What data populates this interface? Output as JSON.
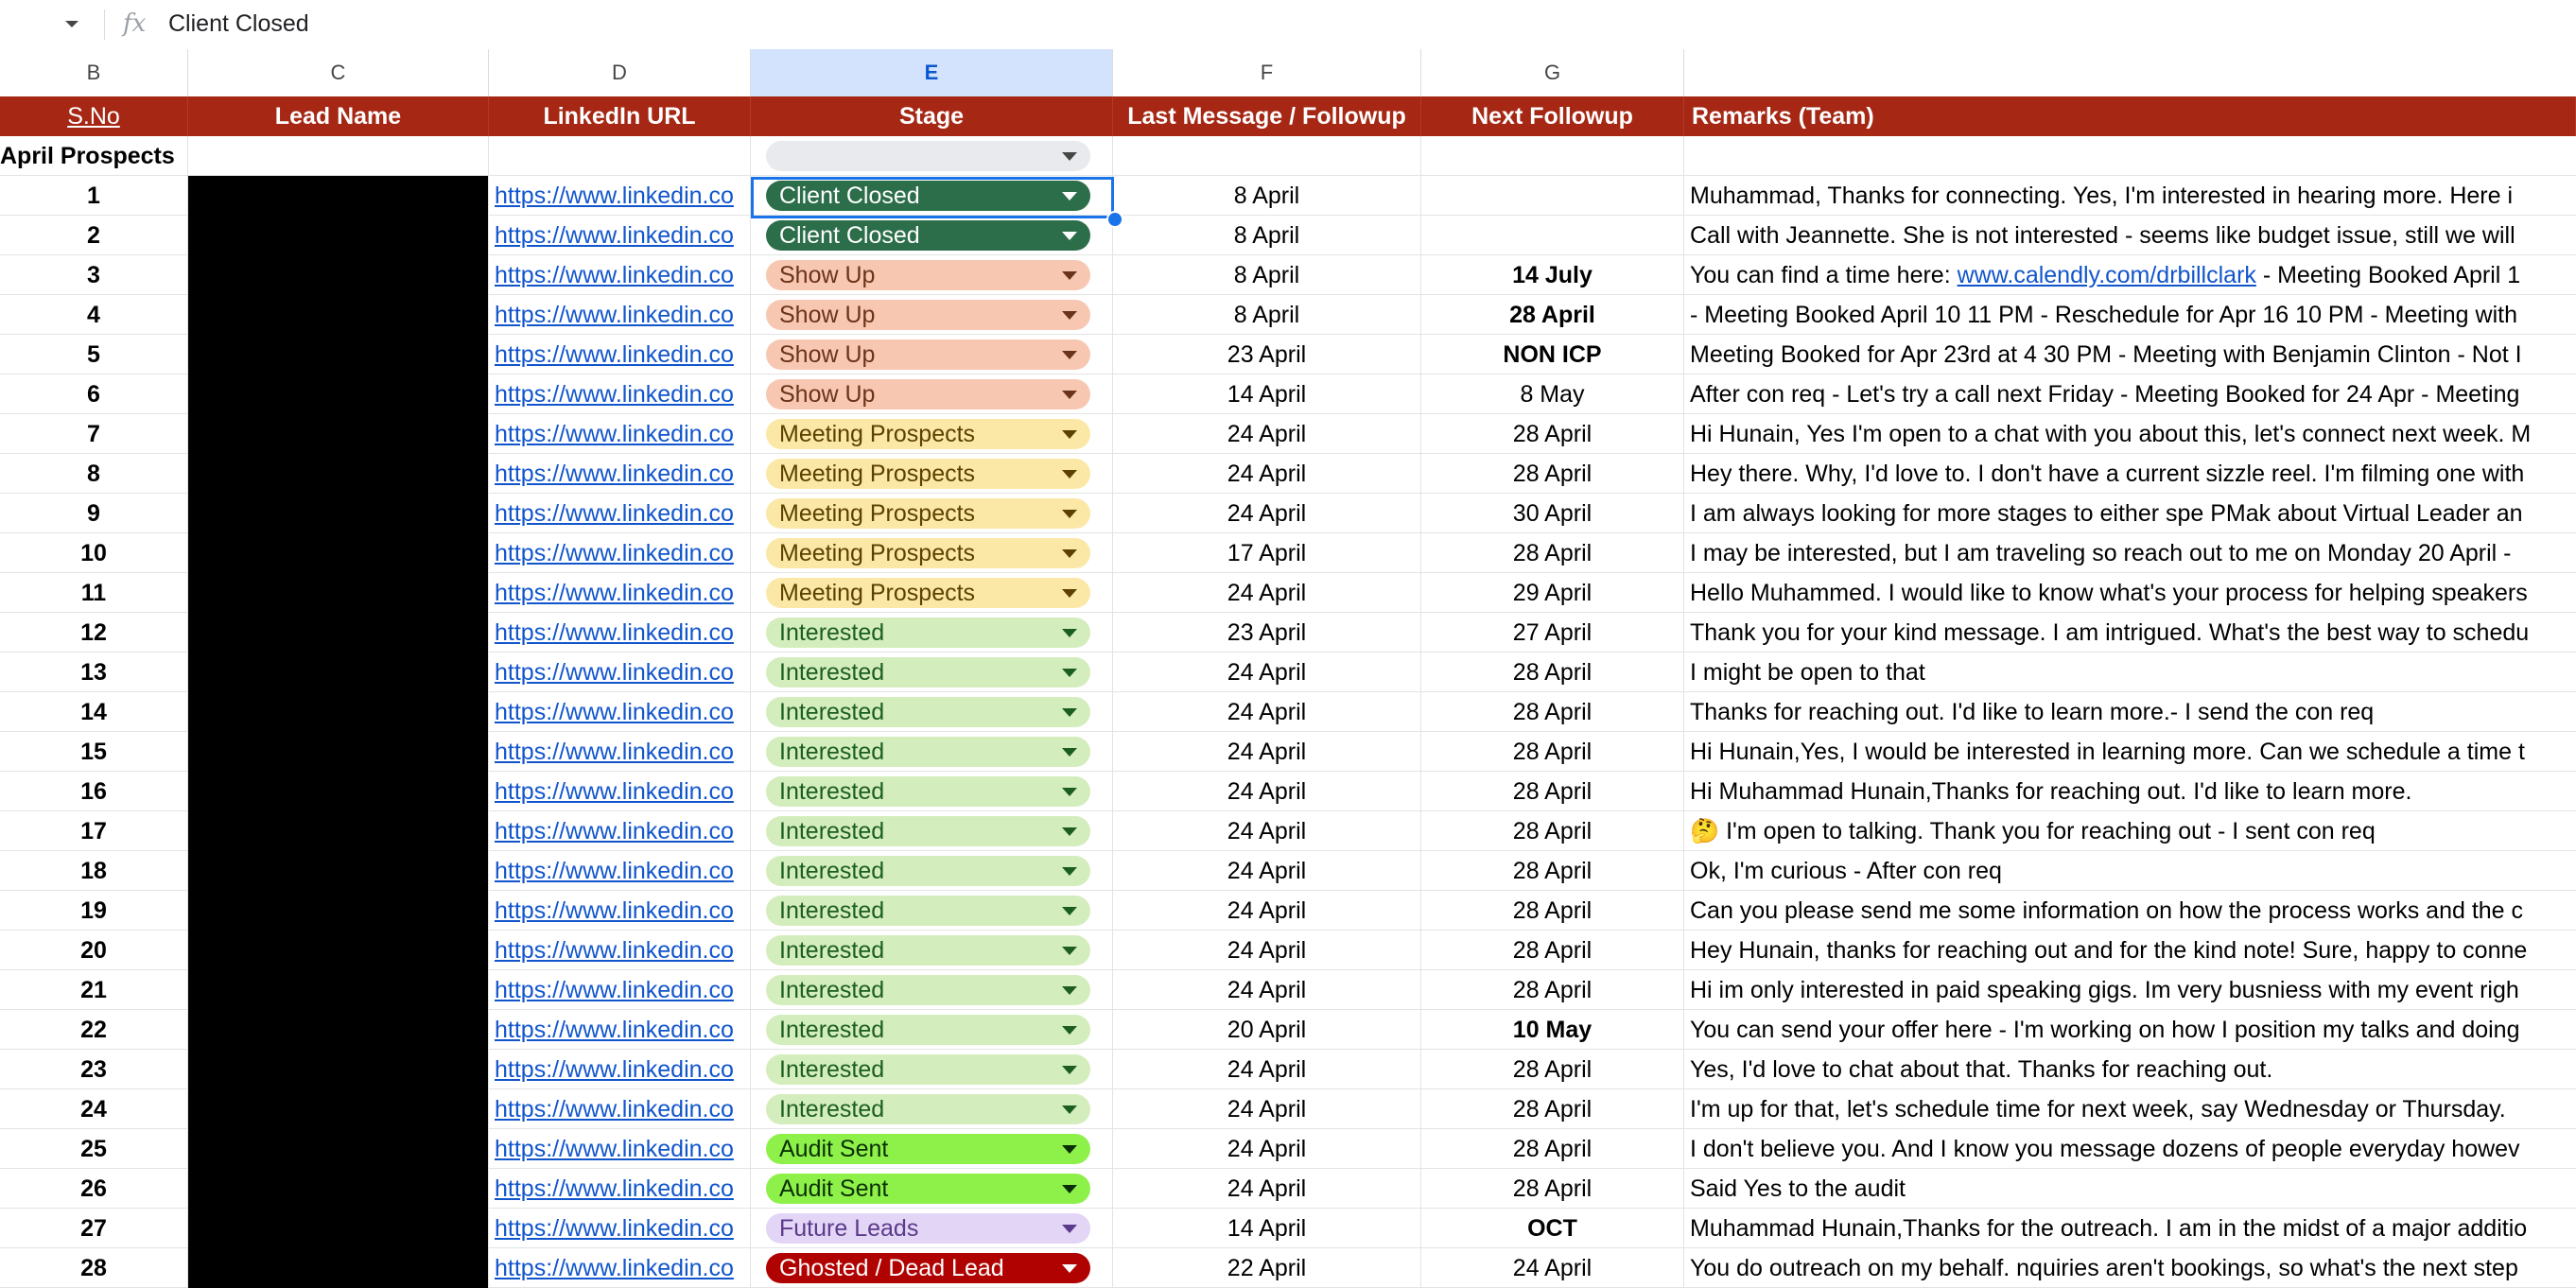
{
  "formula_bar": {
    "value": "Client Closed",
    "fx_icon": "fx-icon"
  },
  "columns": [
    "B",
    "C",
    "D",
    "E",
    "F",
    "G"
  ],
  "selected_column": "E",
  "header": {
    "sno": "S.No",
    "lead_name": "Lead Name",
    "linkedin": "LinkedIn URL",
    "stage": "Stage",
    "last_message": "Last Message / Followup",
    "next_followup": "Next Followup",
    "remarks": "Remarks (Team)"
  },
  "section_label": "April Prospects",
  "stage_styles": {
    "Client Closed": {
      "bg": "#2d6e4a",
      "fg": "#ffffff"
    },
    "Show Up": {
      "bg": "#f7c7b2",
      "fg": "#6b3319"
    },
    "Meeting Prospects": {
      "bg": "#fce8a6",
      "fg": "#5c4100"
    },
    "Interested": {
      "bg": "#d4edbc",
      "fg": "#1b5e20"
    },
    "Audit Sent": {
      "bg": "#8ef14a",
      "fg": "#0a2f05"
    },
    "Future Leads": {
      "bg": "#e3d5f5",
      "fg": "#5b3a8b"
    },
    "Ghosted / Dead Lead": {
      "bg": "#b10202",
      "fg": "#ffffff"
    },
    "empty": {
      "bg": "#e8eaed",
      "fg": "#444746"
    }
  },
  "rows": [
    {
      "sno": "1",
      "url": "https://www.linkedin.co",
      "stage": "Client Closed",
      "last": "8 April",
      "next": "",
      "next_bold": false,
      "remark": "Muhammad,  Thanks for connecting. Yes, I'm interested in hearing more. Here i"
    },
    {
      "sno": "2",
      "url": "https://www.linkedin.co",
      "stage": "Client Closed",
      "last": "8 April",
      "next": "",
      "next_bold": false,
      "remark": "Call with Jeannette. She is not interested - seems like budget issue, still we will"
    },
    {
      "sno": "3",
      "url": "https://www.linkedin.co",
      "stage": "Show Up",
      "last": "8 April",
      "next": "14 July",
      "next_bold": true,
      "remark_pre": "You can find a time here: ",
      "remark_link": "www.calendly.com/drbillclark",
      "remark_post": " - Meeting Booked April 1"
    },
    {
      "sno": "4",
      "url": "https://www.linkedin.co",
      "stage": "Show Up",
      "last": "8 April",
      "next": "28 April",
      "next_bold": true,
      "remark": "- Meeting Booked April 10 11 PM - Reschedule for Apr 16 10 PM -  Meeting with"
    },
    {
      "sno": "5",
      "url": "https://www.linkedin.co",
      "stage": "Show Up",
      "last": "23 April",
      "next": "NON ICP",
      "next_bold": true,
      "remark": "Meeting Booked for Apr 23rd at 4 30 PM - Meeting with Benjamin Clinton - Not I"
    },
    {
      "sno": "6",
      "url": "https://www.linkedin.co",
      "stage": "Show Up",
      "last": "14 April",
      "next": "8 May",
      "next_bold": false,
      "remark": "After con req - Let's try a call next Friday - Meeting Booked for 24 Apr - Meeting"
    },
    {
      "sno": "7",
      "url": "https://www.linkedin.co",
      "stage": "Meeting Prospects",
      "last": "24 April",
      "next": "28 April",
      "next_bold": false,
      "remark": "Hi Hunain, Yes I'm open to a chat with you about this, let's connect next week. M"
    },
    {
      "sno": "8",
      "url": "https://www.linkedin.co",
      "stage": "Meeting Prospects",
      "last": "24 April",
      "next": "28 April",
      "next_bold": false,
      "remark": "Hey there. Why, I'd love to. I don't have a current sizzle reel. I'm filming one with"
    },
    {
      "sno": "9",
      "url": "https://www.linkedin.co",
      "stage": "Meeting Prospects",
      "last": "24 April",
      "next": "30 April",
      "next_bold": false,
      "remark": "I am always looking for more stages to either spe PMak about Virtual Leader an"
    },
    {
      "sno": "10",
      "url": "https://www.linkedin.co",
      "stage": "Meeting Prospects",
      "last": "17 April",
      "next": "28 April",
      "next_bold": false,
      "remark": "I may be interested, but I am traveling so reach out to me on Monday 20 April  -"
    },
    {
      "sno": "11",
      "url": "https://www.linkedin.co",
      "stage": "Meeting Prospects",
      "last": "24 April",
      "next": "29 April",
      "next_bold": false,
      "remark": "Hello Muhammed. I would like to know what's your process for helping speakers"
    },
    {
      "sno": "12",
      "url": "https://www.linkedin.co",
      "stage": "Interested",
      "last": "23 April",
      "next": "27 April",
      "next_bold": false,
      "remark": "Thank you for your kind message. I am intrigued. What's the best way to schedu"
    },
    {
      "sno": "13",
      "url": "https://www.linkedin.co",
      "stage": "Interested",
      "last": "24 April",
      "next": "28 April",
      "next_bold": false,
      "remark": "I might be open to that"
    },
    {
      "sno": "14",
      "url": "https://www.linkedin.co",
      "stage": "Interested",
      "last": "24 April",
      "next": "28 April",
      "next_bold": false,
      "remark": "Thanks for reaching out. I'd like to learn more.- I send the con req"
    },
    {
      "sno": "15",
      "url": "https://www.linkedin.co",
      "stage": "Interested",
      "last": "24 April",
      "next": "28 April",
      "next_bold": false,
      "remark": "Hi Hunain,Yes, I would be interested in learning more. Can we schedule a time t"
    },
    {
      "sno": "16",
      "url": "https://www.linkedin.co",
      "stage": "Interested",
      "last": "24 April",
      "next": "28 April",
      "next_bold": false,
      "remark": "Hi Muhammad Hunain,Thanks for reaching out. I'd like to learn more."
    },
    {
      "sno": "17",
      "url": "https://www.linkedin.co",
      "stage": "Interested",
      "last": "24 April",
      "next": "28 April",
      "next_bold": false,
      "remark": "🤔  I'm open to talking. Thank you for reaching out - I sent con req"
    },
    {
      "sno": "18",
      "url": "https://www.linkedin.co",
      "stage": "Interested",
      "last": "24 April",
      "next": "28 April",
      "next_bold": false,
      "remark": "Ok, I'm curious - After con req"
    },
    {
      "sno": "19",
      "url": "https://www.linkedin.co",
      "stage": "Interested",
      "last": "24 April",
      "next": "28 April",
      "next_bold": false,
      "remark": "Can you please send me some information on how the process works and the c"
    },
    {
      "sno": "20",
      "url": "https://www.linkedin.co",
      "stage": "Interested",
      "last": "24 April",
      "next": "28 April",
      "next_bold": false,
      "remark": "Hey Hunain, thanks for reaching out and for the kind note! Sure, happy to conne"
    },
    {
      "sno": "21",
      "url": "https://www.linkedin.co",
      "stage": "Interested",
      "last": "24 April",
      "next": "28 April",
      "next_bold": false,
      "remark": "Hi im only interested in paid speaking gigs. Im very busniess with my event righ"
    },
    {
      "sno": "22",
      "url": "https://www.linkedin.co",
      "stage": "Interested",
      "last": "20 April",
      "next": "10 May",
      "next_bold": true,
      "remark": "You can send your offer here - I'm working on how I position my talks and doing"
    },
    {
      "sno": "23",
      "url": "https://www.linkedin.co",
      "stage": "Interested",
      "last": "24 April",
      "next": "28 April",
      "next_bold": false,
      "remark": "Yes, I'd love to chat about that. Thanks for reaching out."
    },
    {
      "sno": "24",
      "url": "https://www.linkedin.co",
      "stage": "Interested",
      "last": "24 April",
      "next": "28 April",
      "next_bold": false,
      "remark": "I'm up for that, let's schedule time for next week, say Wednesday or Thursday."
    },
    {
      "sno": "25",
      "url": "https://www.linkedin.co",
      "stage": "Audit Sent",
      "last": "24 April",
      "next": "28 April",
      "next_bold": false,
      "remark": "I don't believe you. And I know you message dozens of people everyday howev"
    },
    {
      "sno": "26",
      "url": "https://www.linkedin.co",
      "stage": "Audit Sent",
      "last": "24 April",
      "next": "28 April",
      "next_bold": false,
      "remark": "Said Yes to the audit"
    },
    {
      "sno": "27",
      "url": "https://www.linkedin.co",
      "stage": "Future Leads",
      "last": "14 April",
      "next": "OCT",
      "next_bold": true,
      "remark": "Muhammad Hunain,Thanks for the outreach. I am in the midst of a major additio"
    },
    {
      "sno": "28",
      "url": "https://www.linkedin.co",
      "stage": "Ghosted / Dead Lead",
      "last": "22 April",
      "next": "24 April",
      "next_bold": false,
      "remark": "You do outreach on my behalf. nquiries aren't bookings, so what's the next step"
    }
  ]
}
